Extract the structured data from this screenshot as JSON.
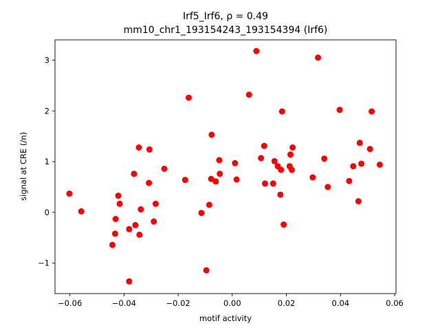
{
  "chart_data": {
    "type": "scatter",
    "title_line1": "Irf5_Irf6, ρ = 0.49",
    "title_line2": "mm10_chr1_193154243_193154394 (Irf6)",
    "xlabel": "motif activity",
    "ylabel": "signal at CRE (/n)",
    "xlim": [
      -0.0655,
      0.0605
    ],
    "ylim": [
      -1.6,
      3.4
    ],
    "xticks": [
      -0.06,
      -0.04,
      -0.02,
      0.0,
      0.02,
      0.04,
      0.06
    ],
    "xtick_labels": [
      "−0.06",
      "−0.04",
      "−0.02",
      "0.00",
      "0.02",
      "0.04",
      "0.06"
    ],
    "yticks": [
      -1,
      0,
      1,
      2,
      3
    ],
    "ytick_labels": [
      "−1",
      "0",
      "1",
      "2",
      "3"
    ],
    "grid": false,
    "marker_color": "#ff0000",
    "points": [
      {
        "x": -0.0602,
        "y": 0.37
      },
      {
        "x": -0.0558,
        "y": 0.02
      },
      {
        "x": -0.0443,
        "y": -0.64
      },
      {
        "x": -0.0433,
        "y": -0.42
      },
      {
        "x": -0.0431,
        "y": -0.13
      },
      {
        "x": -0.0421,
        "y": 0.33
      },
      {
        "x": -0.0416,
        "y": 0.17
      },
      {
        "x": -0.0381,
        "y": -0.33
      },
      {
        "x": -0.0381,
        "y": -1.36
      },
      {
        "x": -0.0363,
        "y": 0.76
      },
      {
        "x": -0.0358,
        "y": -0.25
      },
      {
        "x": -0.0345,
        "y": 1.28
      },
      {
        "x": -0.0343,
        "y": -0.44
      },
      {
        "x": -0.0338,
        "y": 0.06
      },
      {
        "x": -0.0308,
        "y": 0.58
      },
      {
        "x": -0.0306,
        "y": 1.24
      },
      {
        "x": -0.029,
        "y": -0.18
      },
      {
        "x": -0.0283,
        "y": 0.17
      },
      {
        "x": -0.0251,
        "y": 0.86
      },
      {
        "x": -0.0174,
        "y": 0.64
      },
      {
        "x": -0.0161,
        "y": 2.26
      },
      {
        "x": -0.0114,
        "y": -0.01
      },
      {
        "x": -0.0096,
        "y": -1.14
      },
      {
        "x": -0.0085,
        "y": 0.15
      },
      {
        "x": -0.0078,
        "y": 0.66
      },
      {
        "x": -0.0076,
        "y": 1.53
      },
      {
        "x": -0.0061,
        "y": 0.61
      },
      {
        "x": -0.0048,
        "y": 1.03
      },
      {
        "x": -0.0046,
        "y": 0.76
      },
      {
        "x": 0.001,
        "y": 0.97
      },
      {
        "x": 0.0016,
        "y": 0.65
      },
      {
        "x": 0.0062,
        "y": 2.32
      },
      {
        "x": 0.0089,
        "y": 3.18
      },
      {
        "x": 0.0106,
        "y": 1.07
      },
      {
        "x": 0.0118,
        "y": 1.31
      },
      {
        "x": 0.0121,
        "y": 0.57
      },
      {
        "x": 0.0151,
        "y": 0.57
      },
      {
        "x": 0.0156,
        "y": 1.01
      },
      {
        "x": 0.0168,
        "y": 0.91
      },
      {
        "x": 0.0178,
        "y": 0.35
      },
      {
        "x": 0.018,
        "y": 0.84
      },
      {
        "x": 0.0184,
        "y": 1.99
      },
      {
        "x": 0.019,
        "y": -0.24
      },
      {
        "x": 0.0212,
        "y": 0.91
      },
      {
        "x": 0.0215,
        "y": 1.14
      },
      {
        "x": 0.022,
        "y": 0.84
      },
      {
        "x": 0.0223,
        "y": 1.28
      },
      {
        "x": 0.0297,
        "y": 0.69
      },
      {
        "x": 0.0317,
        "y": 3.05
      },
      {
        "x": 0.034,
        "y": 1.06
      },
      {
        "x": 0.0353,
        "y": 0.5
      },
      {
        "x": 0.0397,
        "y": 2.02
      },
      {
        "x": 0.0432,
        "y": 0.62
      },
      {
        "x": 0.0447,
        "y": 0.91
      },
      {
        "x": 0.0466,
        "y": 0.22
      },
      {
        "x": 0.0471,
        "y": 1.37
      },
      {
        "x": 0.0477,
        "y": 0.96
      },
      {
        "x": 0.0509,
        "y": 1.25
      },
      {
        "x": 0.0515,
        "y": 1.99
      },
      {
        "x": 0.0545,
        "y": 0.94
      }
    ]
  }
}
